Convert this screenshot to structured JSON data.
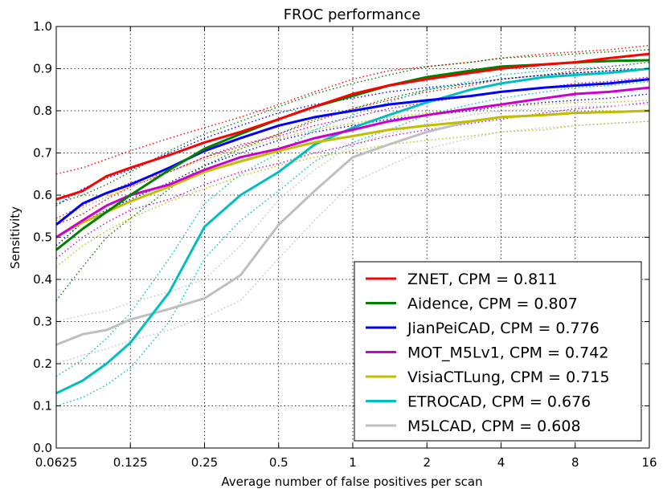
{
  "chart_data": {
    "type": "line",
    "title": "FROC performance",
    "xlabel": "Average number of false positives per scan",
    "ylabel": "Sensitivity",
    "x_scale": "log2",
    "xlim": [
      0.0625,
      16
    ],
    "ylim": [
      0.0,
      1.0
    ],
    "x_ticks": [
      0.0625,
      0.125,
      0.25,
      0.5,
      1,
      2,
      4,
      8,
      16
    ],
    "x_tick_labels": [
      "0.0625",
      "0.125",
      "0.25",
      "0.5",
      "1",
      "2",
      "4",
      "8",
      "16"
    ],
    "y_ticks": [
      0.0,
      0.1,
      0.2,
      0.3,
      0.4,
      0.5,
      0.6,
      0.7,
      0.8,
      0.9,
      1.0
    ],
    "y_tick_labels": [
      "0.0",
      "0.1",
      "0.2",
      "0.3",
      "0.4",
      "0.5",
      "0.6",
      "0.7",
      "0.8",
      "0.9",
      "1.0"
    ],
    "grid": true,
    "legend_position": "bottom-right",
    "series": [
      {
        "name": "ZNET, CPM = 0.811",
        "color": "#ff0000",
        "x": [
          0.0625,
          0.08,
          0.1,
          0.125,
          0.18,
          0.25,
          0.35,
          0.5,
          0.7,
          1,
          1.4,
          2,
          3,
          4,
          6,
          8,
          11,
          16
        ],
        "y": [
          0.59,
          0.61,
          0.645,
          0.665,
          0.695,
          0.725,
          0.75,
          0.78,
          0.81,
          0.84,
          0.86,
          0.875,
          0.89,
          0.9,
          0.91,
          0.915,
          0.925,
          0.935
        ],
        "upper": [
          0.65,
          0.665,
          0.685,
          0.705,
          0.735,
          0.76,
          0.785,
          0.815,
          0.845,
          0.875,
          0.895,
          0.905,
          0.915,
          0.925,
          0.935,
          0.94,
          0.945,
          0.955
        ],
        "lower": [
          0.53,
          0.555,
          0.59,
          0.62,
          0.655,
          0.69,
          0.715,
          0.745,
          0.775,
          0.805,
          0.825,
          0.845,
          0.86,
          0.875,
          0.885,
          0.895,
          0.905,
          0.915
        ]
      },
      {
        "name": "Aidence, CPM = 0.807",
        "color": "#008000",
        "x": [
          0.0625,
          0.08,
          0.1,
          0.125,
          0.18,
          0.25,
          0.35,
          0.5,
          0.7,
          1,
          1.4,
          2,
          3,
          4,
          6,
          8,
          11,
          16
        ],
        "y": [
          0.47,
          0.52,
          0.56,
          0.6,
          0.66,
          0.71,
          0.745,
          0.78,
          0.81,
          0.835,
          0.86,
          0.88,
          0.895,
          0.905,
          0.91,
          0.915,
          0.918,
          0.92
        ],
        "upper": [
          0.58,
          0.6,
          0.625,
          0.655,
          0.705,
          0.745,
          0.775,
          0.81,
          0.84,
          0.865,
          0.885,
          0.905,
          0.915,
          0.925,
          0.93,
          0.935,
          0.94,
          0.945
        ],
        "lower": [
          0.35,
          0.43,
          0.5,
          0.545,
          0.615,
          0.67,
          0.71,
          0.745,
          0.78,
          0.805,
          0.83,
          0.85,
          0.865,
          0.875,
          0.885,
          0.89,
          0.895,
          0.9
        ]
      },
      {
        "name": "JianPeiCAD, CPM = 0.776",
        "color": "#0000ff",
        "x": [
          0.0625,
          0.08,
          0.1,
          0.125,
          0.18,
          0.25,
          0.35,
          0.5,
          0.7,
          1,
          1.4,
          2,
          3,
          4,
          6,
          8,
          11,
          16
        ],
        "y": [
          0.53,
          0.58,
          0.605,
          0.625,
          0.665,
          0.705,
          0.735,
          0.765,
          0.785,
          0.8,
          0.815,
          0.825,
          0.835,
          0.845,
          0.855,
          0.86,
          0.865,
          0.875
        ],
        "upper": [
          0.575,
          0.615,
          0.64,
          0.66,
          0.7,
          0.735,
          0.765,
          0.795,
          0.815,
          0.83,
          0.845,
          0.855,
          0.865,
          0.875,
          0.885,
          0.89,
          0.895,
          0.9
        ],
        "lower": [
          0.48,
          0.535,
          0.565,
          0.59,
          0.63,
          0.67,
          0.7,
          0.73,
          0.75,
          0.765,
          0.78,
          0.79,
          0.8,
          0.81,
          0.82,
          0.825,
          0.83,
          0.84
        ]
      },
      {
        "name": "MOT_M5Lv1, CPM = 0.742",
        "color": "#cc00cc",
        "x": [
          0.0625,
          0.08,
          0.1,
          0.125,
          0.18,
          0.25,
          0.35,
          0.5,
          0.7,
          1,
          1.4,
          2,
          3,
          4,
          6,
          8,
          11,
          16
        ],
        "y": [
          0.5,
          0.54,
          0.575,
          0.6,
          0.625,
          0.66,
          0.69,
          0.71,
          0.735,
          0.755,
          0.775,
          0.79,
          0.805,
          0.815,
          0.83,
          0.84,
          0.845,
          0.855
        ],
        "upper": [
          0.545,
          0.575,
          0.605,
          0.63,
          0.655,
          0.69,
          0.72,
          0.74,
          0.765,
          0.785,
          0.805,
          0.82,
          0.835,
          0.845,
          0.855,
          0.865,
          0.87,
          0.88
        ],
        "lower": [
          0.45,
          0.5,
          0.535,
          0.565,
          0.59,
          0.625,
          0.655,
          0.675,
          0.7,
          0.72,
          0.74,
          0.755,
          0.77,
          0.78,
          0.795,
          0.805,
          0.81,
          0.82
        ]
      },
      {
        "name": "VisiaCTLung, CPM = 0.715",
        "color": "#bfbf00",
        "x": [
          0.0625,
          0.08,
          0.1,
          0.125,
          0.18,
          0.25,
          0.35,
          0.5,
          0.7,
          1,
          1.4,
          2,
          3,
          4,
          6,
          8,
          11,
          16
        ],
        "y": [
          0.5,
          0.535,
          0.56,
          0.585,
          0.62,
          0.655,
          0.68,
          0.705,
          0.725,
          0.74,
          0.755,
          0.765,
          0.775,
          0.785,
          0.79,
          0.795,
          0.797,
          0.8
        ],
        "upper": [
          0.54,
          0.57,
          0.595,
          0.62,
          0.655,
          0.685,
          0.71,
          0.735,
          0.755,
          0.77,
          0.785,
          0.795,
          0.805,
          0.81,
          0.815,
          0.82,
          0.82,
          0.825
        ],
        "lower": [
          0.43,
          0.48,
          0.515,
          0.545,
          0.585,
          0.615,
          0.645,
          0.67,
          0.69,
          0.705,
          0.72,
          0.73,
          0.74,
          0.75,
          0.755,
          0.765,
          0.77,
          0.775
        ]
      },
      {
        "name": "ETROCAD, CPM = 0.676",
        "color": "#00bfbf",
        "x": [
          0.0625,
          0.08,
          0.1,
          0.125,
          0.18,
          0.25,
          0.35,
          0.5,
          0.7,
          1,
          1.4,
          2,
          3,
          4,
          6,
          8,
          11,
          16
        ],
        "y": [
          0.13,
          0.16,
          0.2,
          0.25,
          0.37,
          0.525,
          0.6,
          0.655,
          0.72,
          0.76,
          0.79,
          0.82,
          0.85,
          0.865,
          0.88,
          0.885,
          0.89,
          0.9
        ],
        "upper": [
          0.17,
          0.21,
          0.26,
          0.32,
          0.45,
          0.58,
          0.65,
          0.7,
          0.755,
          0.79,
          0.82,
          0.85,
          0.87,
          0.885,
          0.895,
          0.9,
          0.905,
          0.915
        ],
        "lower": [
          0.1,
          0.12,
          0.15,
          0.19,
          0.3,
          0.45,
          0.54,
          0.61,
          0.68,
          0.725,
          0.755,
          0.79,
          0.815,
          0.83,
          0.845,
          0.855,
          0.86,
          0.87
        ]
      },
      {
        "name": "M5LCAD, CPM = 0.608",
        "color": "#bfbfbf",
        "x": [
          0.0625,
          0.08,
          0.1,
          0.125,
          0.18,
          0.25,
          0.35,
          0.5,
          0.7,
          1,
          1.4,
          2,
          3,
          4,
          6,
          8,
          11,
          16
        ],
        "y": [
          0.245,
          0.27,
          0.28,
          0.305,
          0.33,
          0.355,
          0.41,
          0.53,
          0.61,
          0.69,
          0.72,
          0.75,
          0.775,
          0.785,
          0.79,
          0.795,
          0.797,
          0.8
        ],
        "upper": [
          0.3,
          0.315,
          0.325,
          0.345,
          0.37,
          0.4,
          0.48,
          0.59,
          0.66,
          0.72,
          0.745,
          0.77,
          0.79,
          0.8,
          0.805,
          0.81,
          0.812,
          0.815
        ],
        "lower": [
          0.2,
          0.22,
          0.235,
          0.255,
          0.28,
          0.31,
          0.35,
          0.45,
          0.54,
          0.63,
          0.67,
          0.71,
          0.735,
          0.75,
          0.76,
          0.765,
          0.77,
          0.775
        ]
      }
    ]
  }
}
